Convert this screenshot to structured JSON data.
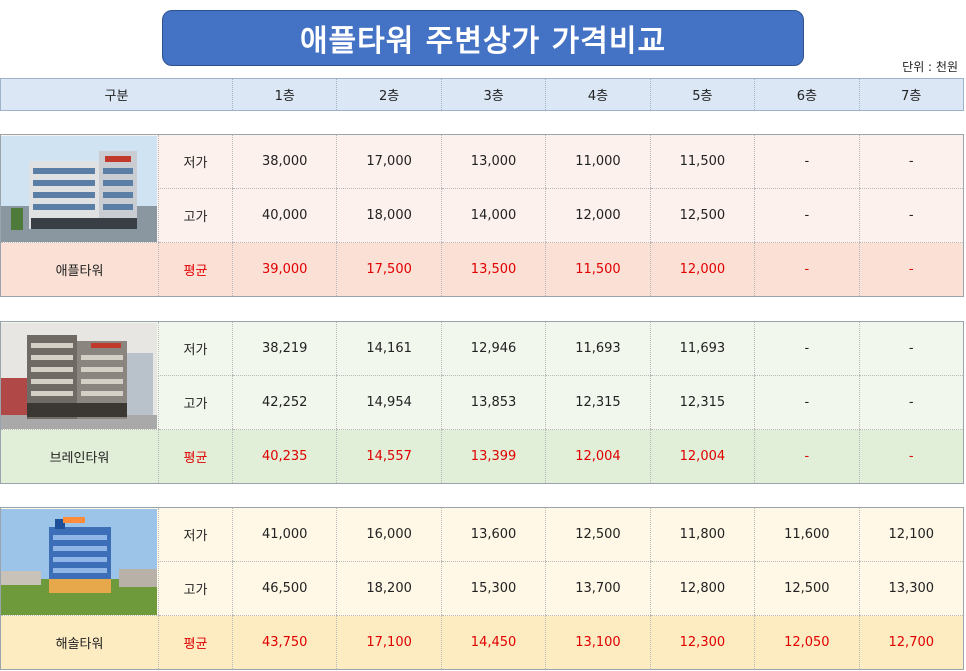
{
  "title": "애플타워 주변상가 가격비교",
  "unit_note": "단위 : 천원",
  "header": {
    "category": "구분",
    "floors": [
      "1층",
      "2층",
      "3층",
      "4층",
      "5층",
      "6층",
      "7층"
    ]
  },
  "groups": [
    {
      "name": "애플타워",
      "rows": [
        {
          "label": "저가",
          "values": [
            "38,000",
            "17,000",
            "13,000",
            "11,000",
            "11,500",
            "-",
            "-"
          ]
        },
        {
          "label": "고가",
          "values": [
            "40,000",
            "18,000",
            "14,000",
            "12,000",
            "12,500",
            "-",
            "-"
          ]
        },
        {
          "label": "평균",
          "values": [
            "39,000",
            "17,500",
            "13,500",
            "11,500",
            "12,000",
            "-",
            "-"
          ]
        }
      ]
    },
    {
      "name": "브레인타워",
      "rows": [
        {
          "label": "저가",
          "values": [
            "38,219",
            "14,161",
            "12,946",
            "11,693",
            "11,693",
            "-",
            "-"
          ]
        },
        {
          "label": "고가",
          "values": [
            "42,252",
            "14,954",
            "13,853",
            "12,315",
            "12,315",
            "-",
            "-"
          ]
        },
        {
          "label": "평균",
          "values": [
            "40,235",
            "14,557",
            "13,399",
            "12,004",
            "12,004",
            "-",
            "-"
          ]
        }
      ]
    },
    {
      "name": "해솔타워",
      "rows": [
        {
          "label": "저가",
          "values": [
            "41,000",
            "16,000",
            "13,600",
            "12,500",
            "11,800",
            "11,600",
            "12,100"
          ]
        },
        {
          "label": "고가",
          "values": [
            "46,500",
            "18,200",
            "15,300",
            "13,700",
            "12,800",
            "12,500",
            "13,300"
          ]
        },
        {
          "label": "평균",
          "values": [
            "43,750",
            "17,100",
            "14,450",
            "13,100",
            "12,300",
            "12,050",
            "12,700"
          ]
        }
      ]
    }
  ]
}
